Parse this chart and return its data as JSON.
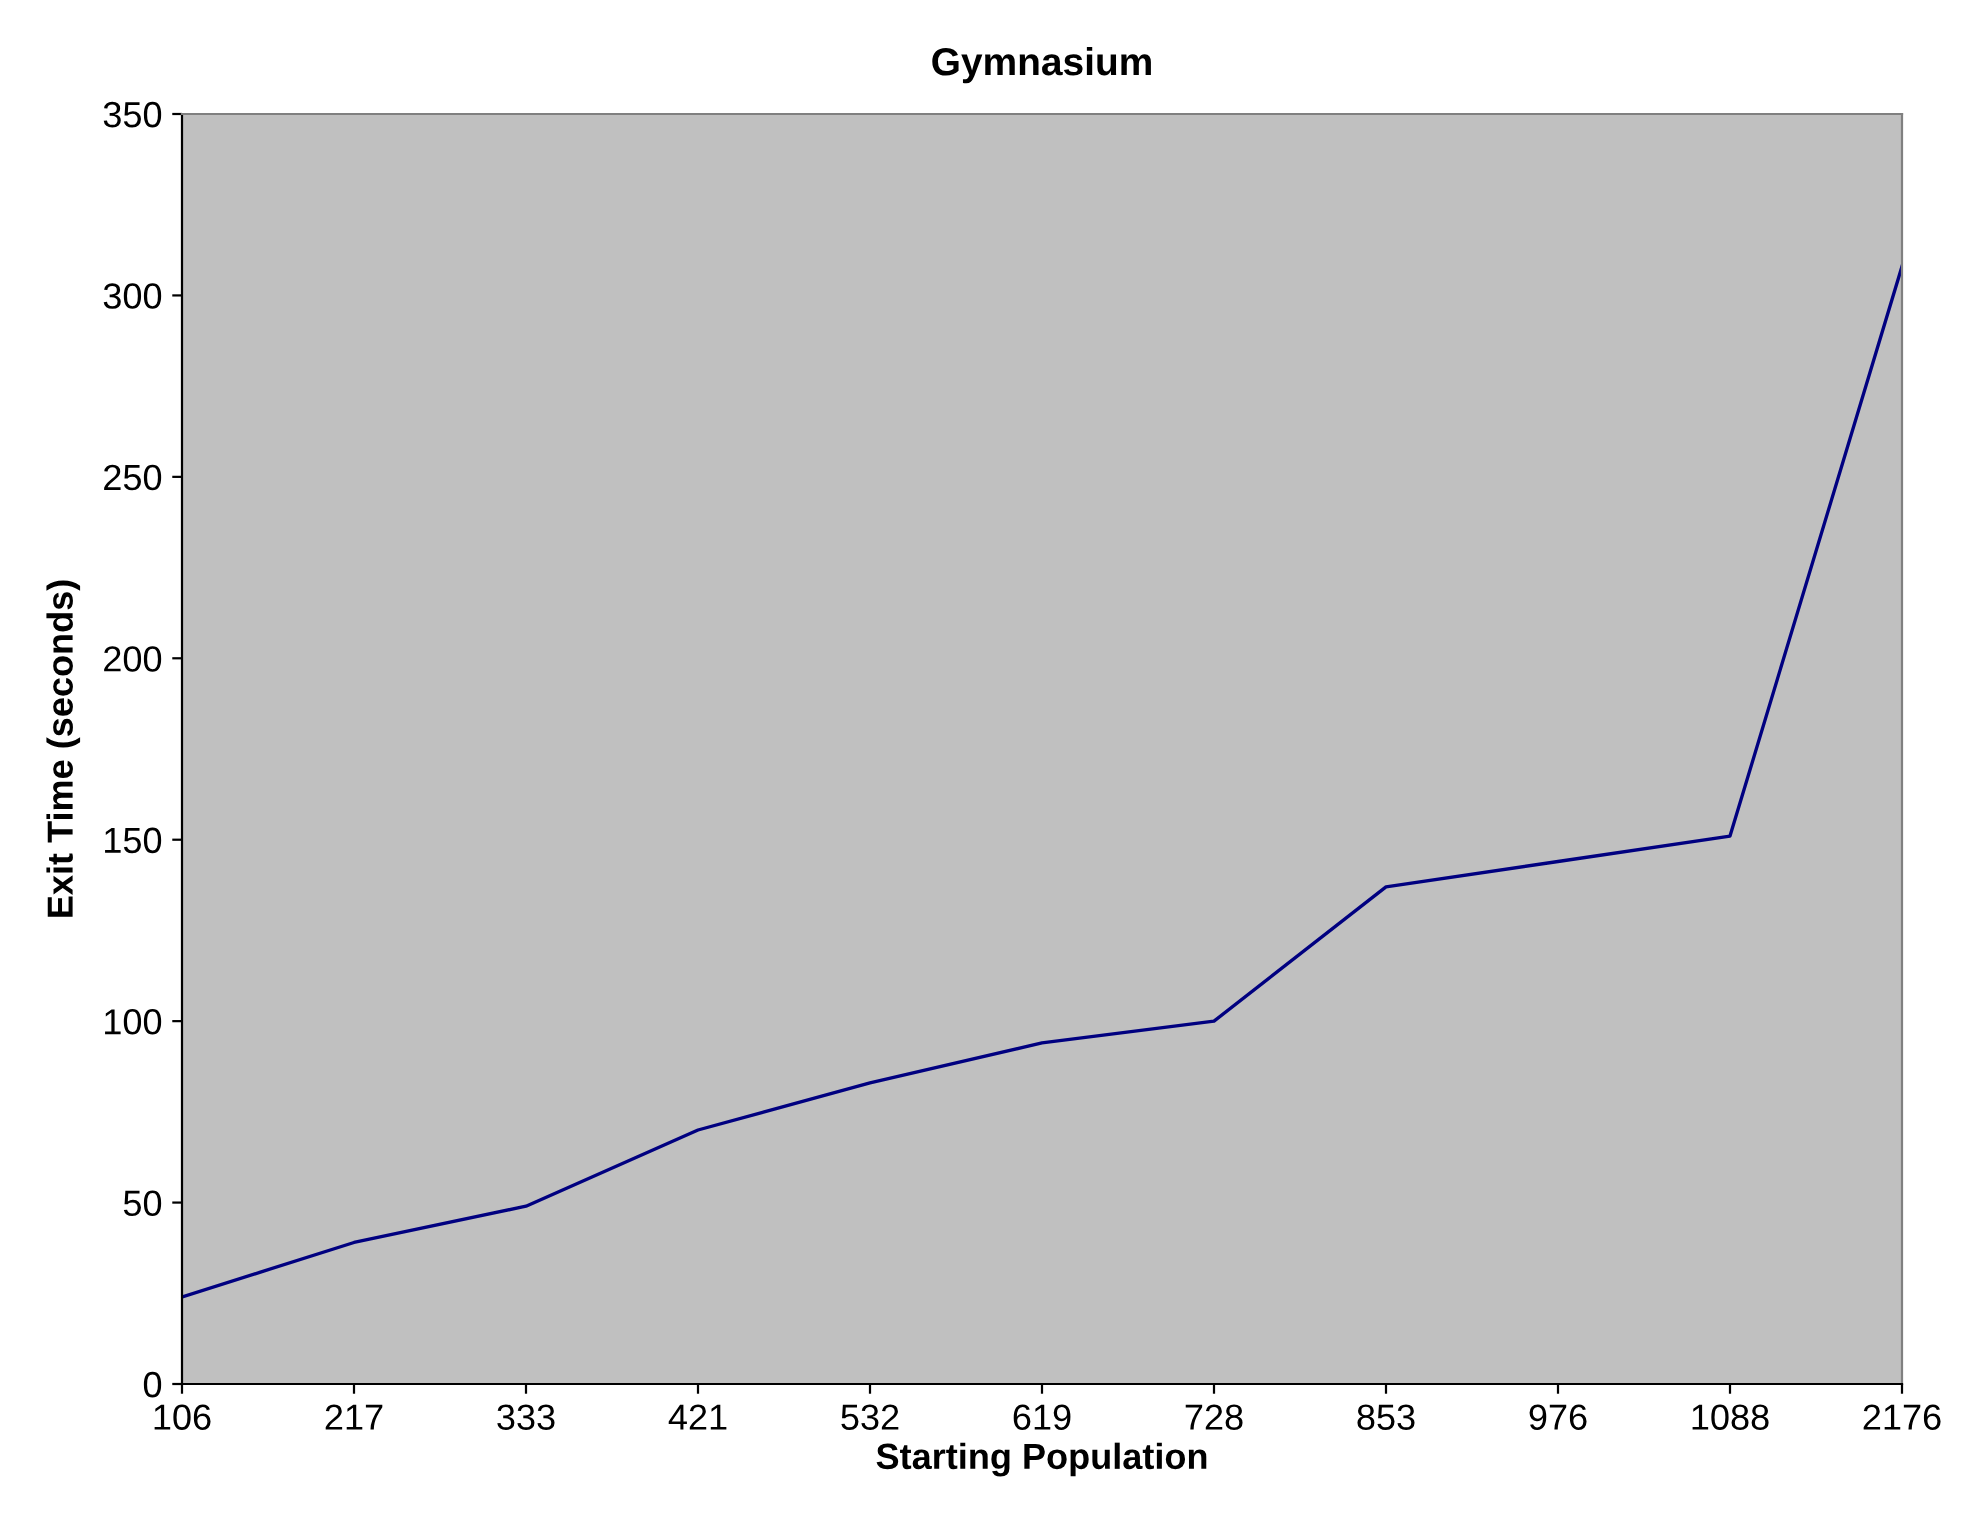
{
  "chart_data": {
    "type": "line",
    "title": "Gymnasium",
    "xlabel": "Starting Population",
    "ylabel": "Exit Time (seconds)",
    "categories": [
      "106",
      "217",
      "333",
      "421",
      "532",
      "619",
      "728",
      "853",
      "976",
      "1088",
      "2176"
    ],
    "series": [
      {
        "color": "#000080",
        "values": [
          24,
          39,
          49,
          70,
          83,
          94,
          100,
          137,
          144,
          151,
          308
        ]
      }
    ],
    "ylim": [
      0,
      350
    ],
    "yticks": [
      0,
      50,
      100,
      150,
      200,
      250,
      300,
      350
    ],
    "grid": false,
    "legend": false,
    "marker": "none",
    "line_style": "solid"
  }
}
